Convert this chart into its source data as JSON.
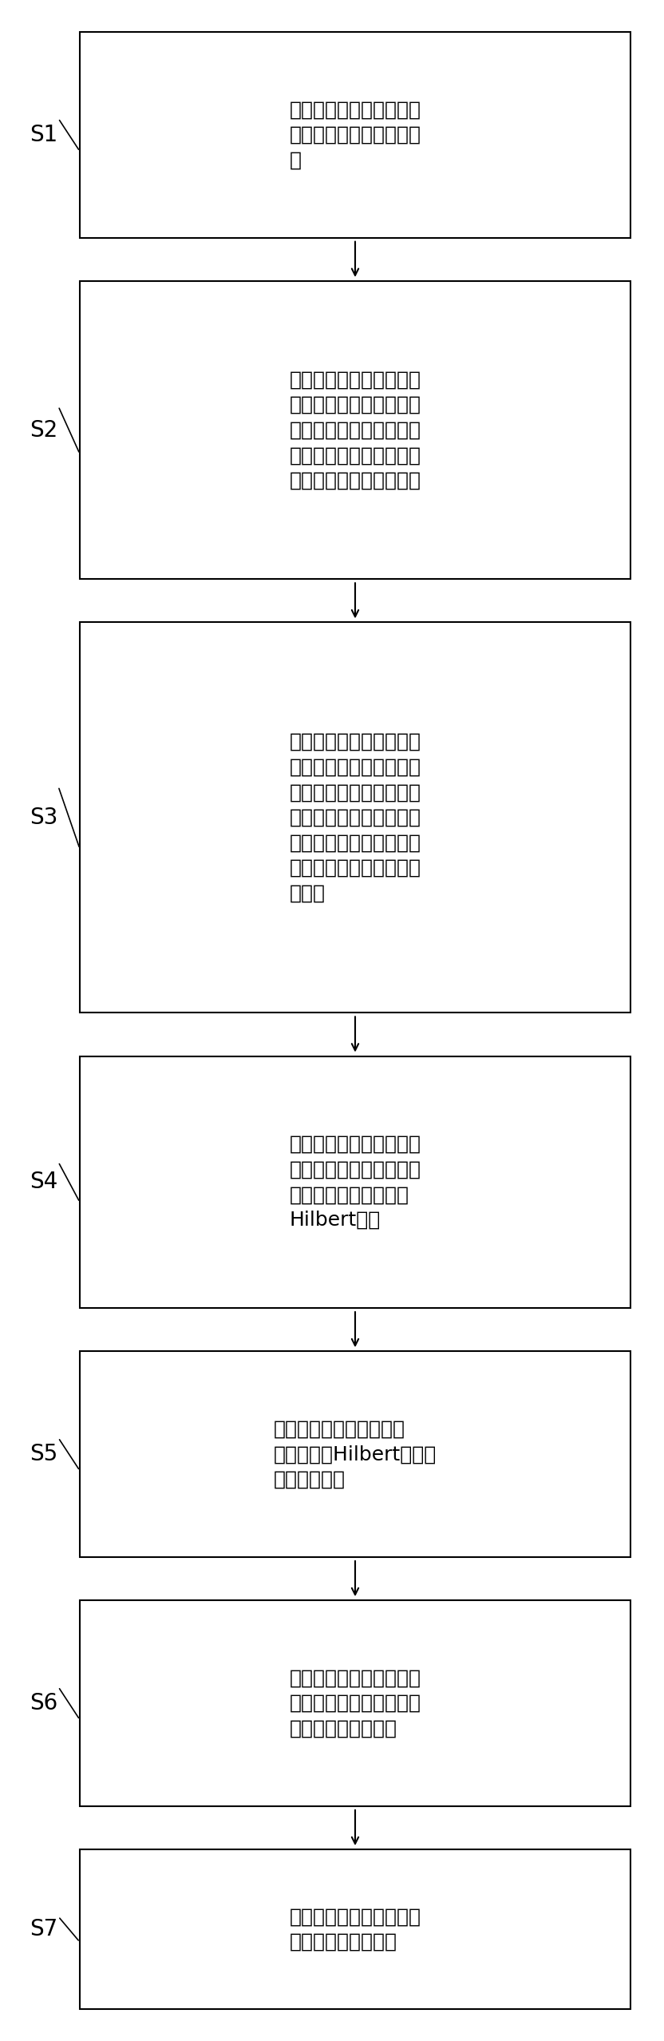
{
  "bg_color": "#ffffff",
  "box_color": "#ffffff",
  "box_edge_color": "#000000",
  "arrow_color": "#000000",
  "label_color": "#000000",
  "steps": [
    {
      "label": "S1",
      "text": "在叶片上布置等间距分布\n标记点，并确定标记点位\n置"
    },
    {
      "label": "S2",
      "text": "针对所述具有疲劳裂纹叶\n片结构，通过非接触多点\n测振方法采集叶片在随机\n信号激励下各个标记点位\n置的非线性振动响应信号"
    },
    {
      "label": "S3",
      "text": "根据随机信号激励条件下\n的非线性振动响应信号，\n基于输入点和输出点非线\n性振动响应信号，采用频\n率响应函数描述叶片输入\n点和输出点之间的振动传\n递特性"
    },
    {
      "label": "S4",
      "text": "根据所述随机信号激励条\n件下的频率响应函数计算\n各个所述标记点位置的\nHilbert变换"
    },
    {
      "label": "S5",
      "text": "根据所述各标记点对应的\n频响函数及Hilbert变换计\n算互相关指数"
    },
    {
      "label": "S6",
      "text": "根据所述互相关指数计算\n各个所述标记点位置的振\n动响应非线性程度值"
    },
    {
      "label": "S7",
      "text": "根据所述振动响应非线性\n程度值确定裂纹位置"
    }
  ]
}
